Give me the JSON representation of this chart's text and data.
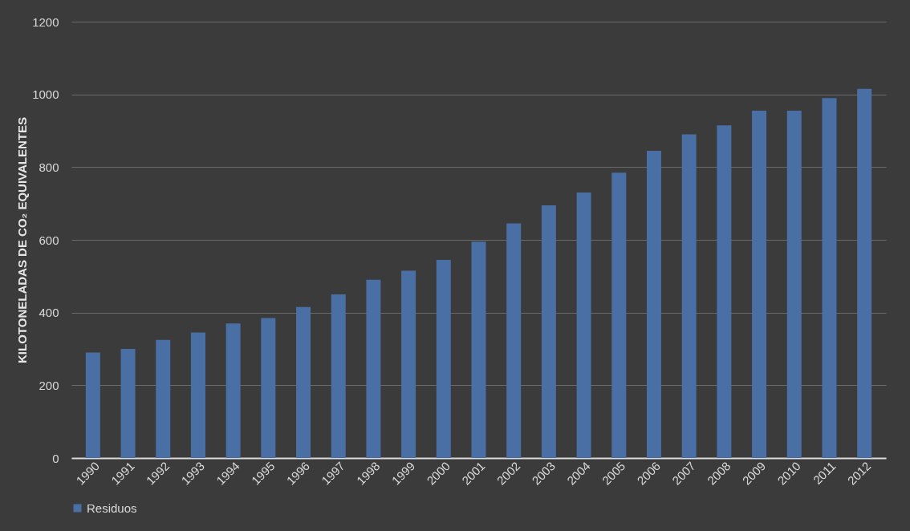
{
  "chart_data": {
    "type": "bar",
    "ylabel": "KILOTONELADAS DE CO₂ EQUIVALENTES",
    "categories": [
      "1990",
      "1991",
      "1992",
      "1993",
      "1994",
      "1995",
      "1996",
      "1997",
      "1998",
      "1999",
      "2000",
      "2001",
      "2002",
      "2003",
      "2004",
      "2005",
      "2006",
      "2007",
      "2008",
      "2009",
      "2010",
      "2011",
      "2012"
    ],
    "series": [
      {
        "name": "Residuos",
        "color": "#4a6fa5",
        "values": [
          290,
          300,
          325,
          345,
          370,
          385,
          415,
          450,
          490,
          515,
          545,
          595,
          645,
          695,
          730,
          785,
          845,
          890,
          915,
          955,
          955,
          990,
          1015
        ]
      }
    ],
    "ylim": [
      0,
      1200
    ],
    "yticks": [
      0,
      200,
      400,
      600,
      800,
      1000,
      1200
    ],
    "grid": "y",
    "legend": "bottom"
  }
}
